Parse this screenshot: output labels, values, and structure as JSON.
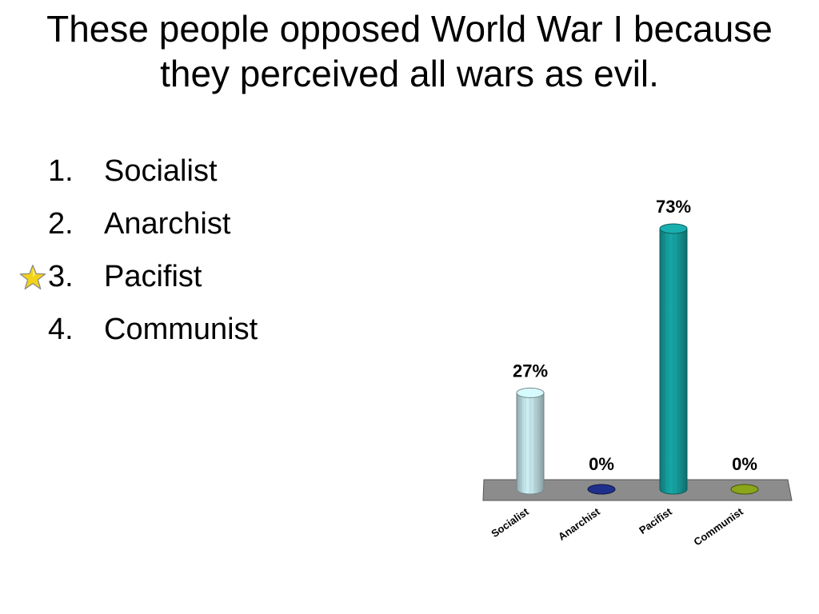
{
  "slide": {
    "title": "These people opposed World War I because they perceived all wars as evil."
  },
  "answers": [
    {
      "number": "1.",
      "label": "Socialist",
      "correct": false
    },
    {
      "number": "2.",
      "label": "Anarchist",
      "correct": false
    },
    {
      "number": "3.",
      "label": "Pacifist",
      "correct": true
    },
    {
      "number": "4.",
      "label": "Communist",
      "correct": false
    }
  ],
  "chart_data": {
    "type": "bar",
    "categories": [
      "Socialist",
      "Anarchist",
      "Pacifist",
      "Communist"
    ],
    "values": [
      27,
      0,
      73,
      0
    ],
    "data_labels": [
      "27%",
      "0%",
      "73%",
      "0%"
    ],
    "colors": [
      "#bfe0e4",
      "#1f2f8c",
      "#169c9c",
      "#8aa61a"
    ],
    "ylim": [
      0,
      73
    ],
    "grid": false,
    "legend": "none"
  }
}
